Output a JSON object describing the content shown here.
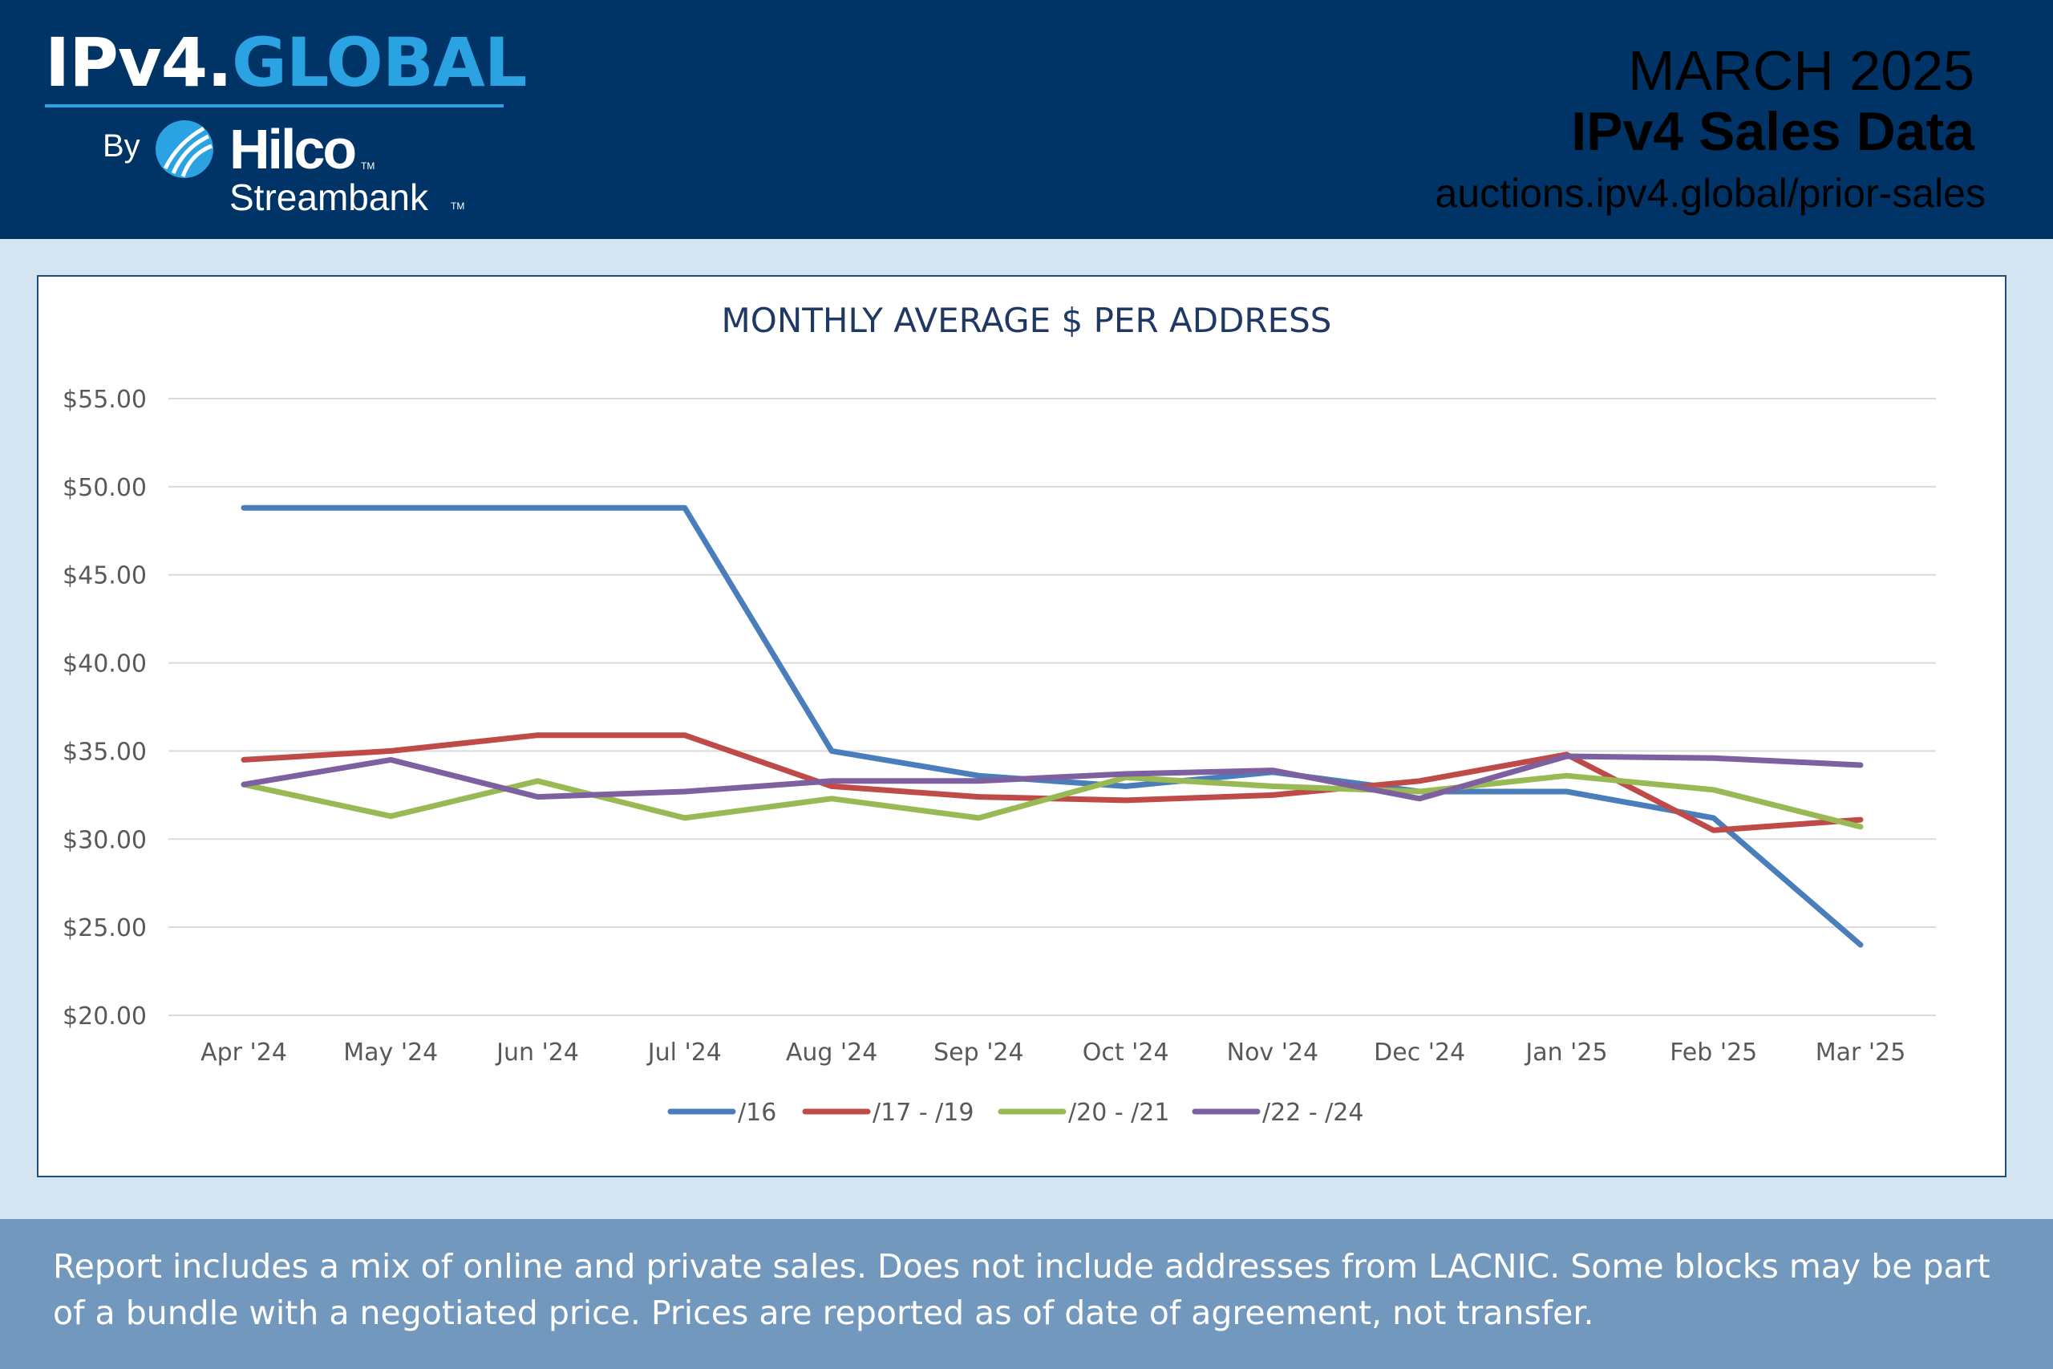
{
  "header": {
    "logo": {
      "prefix": "IPv4.",
      "accent": "GLOBAL",
      "by": "By",
      "brand": "Hilco",
      "brand_sub": "Streambank",
      "tm": "TM"
    },
    "month": "MARCH 2025",
    "title": "IPv4 Sales Data",
    "url": "auctions.ipv4.global/prior-sales"
  },
  "colors": {
    "header_bg": "#003366",
    "accent": "#2ba3e3",
    "footer_bg": "#7299bd",
    "page_bg": "#d5e4f1"
  },
  "chart_data": {
    "type": "line",
    "title": "MONTHLY AVERAGE $ PER ADDRESS",
    "xlabel": "",
    "ylabel": "",
    "categories": [
      "Apr '24",
      "May '24",
      "Jun '24",
      "Jul '24",
      "Aug '24",
      "Sep '24",
      "Oct '24",
      "Nov '24",
      "Dec '24",
      "Jan '25",
      "Feb '25",
      "Mar '25"
    ],
    "ylim": [
      20,
      55
    ],
    "yticks": [
      20,
      25,
      30,
      35,
      40,
      45,
      50,
      55
    ],
    "ytick_labels": [
      "$20.00",
      "$25.00",
      "$30.00",
      "$35.00",
      "$40.00",
      "$45.00",
      "$50.00",
      "$55.00"
    ],
    "grid": true,
    "legend": "bottom",
    "series": [
      {
        "name": "/16",
        "color": "#4a7ebb",
        "values": [
          48.8,
          48.8,
          48.8,
          48.8,
          35.0,
          33.6,
          33.0,
          33.8,
          32.7,
          32.7,
          31.2,
          24.0
        ]
      },
      {
        "name": "/17 - /19",
        "color": "#be4b48",
        "values": [
          34.5,
          35.0,
          35.9,
          35.9,
          33.0,
          32.4,
          32.2,
          32.5,
          33.3,
          34.8,
          30.5,
          31.1
        ]
      },
      {
        "name": "/20 - /21",
        "color": "#98b954",
        "values": [
          33.1,
          31.3,
          33.3,
          31.2,
          32.3,
          31.2,
          33.5,
          33.0,
          32.7,
          33.6,
          32.8,
          30.7
        ]
      },
      {
        "name": "/22 - /24",
        "color": "#7d60a0",
        "values": [
          33.1,
          34.5,
          32.4,
          32.7,
          33.3,
          33.3,
          33.7,
          33.9,
          32.3,
          34.7,
          34.6,
          34.2
        ]
      }
    ]
  },
  "footer": {
    "note": "Report includes a mix of online and private sales. Does not include addresses from LACNIC. Some blocks may be part of a bundle with a negotiated price. Prices are reported as of date of agreement, not transfer."
  }
}
